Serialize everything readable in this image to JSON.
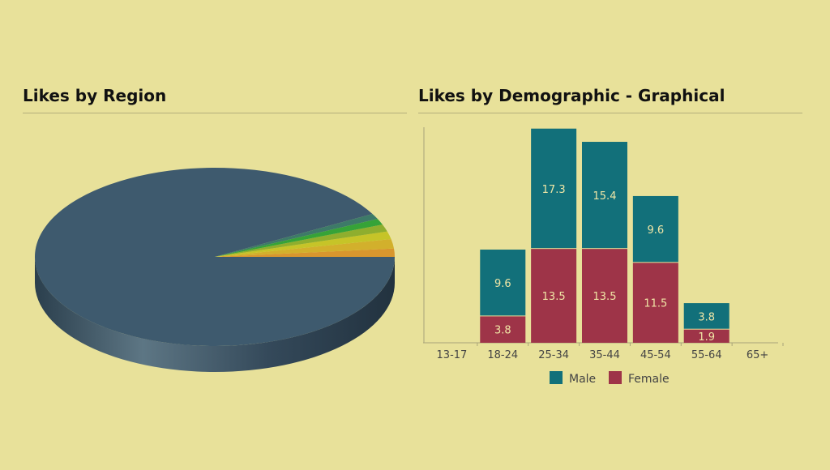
{
  "chart_data": [
    {
      "type": "pie",
      "title": "Likes by Region",
      "values": [
        92.0,
        1.5,
        1.7,
        1.4,
        1.3,
        1.1,
        1.0
      ],
      "colors": [
        "#3e5a6e",
        "#3d7a68",
        "#36a338",
        "#8fae2e",
        "#c6c428",
        "#d2b02c",
        "#d8962e"
      ],
      "side_color": "#2e4252",
      "style": "3d"
    },
    {
      "type": "bar",
      "stacked": true,
      "title": "Likes by Demographic - Graphical",
      "categories": [
        "13-17",
        "18-24",
        "25-34",
        "35-44",
        "45-54",
        "55-64",
        "65+"
      ],
      "series": [
        {
          "name": "Female",
          "values": [
            0,
            3.8,
            13.5,
            13.5,
            11.5,
            1.9,
            0
          ],
          "color": "#9e3448"
        },
        {
          "name": "Male",
          "values": [
            0,
            9.6,
            17.3,
            15.4,
            9.6,
            3.8,
            0
          ],
          "color": "#12707a"
        }
      ],
      "legend_order": [
        "Male",
        "Female"
      ],
      "legend": "bottom",
      "ylim": [
        0,
        31
      ],
      "grid": false
    }
  ]
}
